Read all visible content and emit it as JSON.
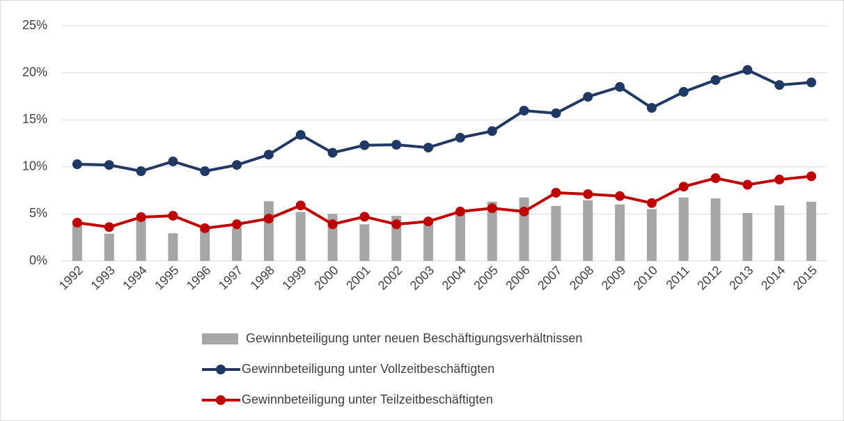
{
  "chart_data": {
    "type": "combo",
    "categories": [
      "1992",
      "1993",
      "1994",
      "1995",
      "1996",
      "1997",
      "1998",
      "1999",
      "2000",
      "2001",
      "2002",
      "2003",
      "2004",
      "2005",
      "2006",
      "2007",
      "2008",
      "2009",
      "2010",
      "2011",
      "2012",
      "2013",
      "2014",
      "2015"
    ],
    "series": [
      {
        "name": "Gewinnbeteiligung unter neuen Beschäftigungsverhältnissen",
        "type": "bar",
        "color": "#a6a6a6",
        "values": [
          4.1,
          2.9,
          4.7,
          2.95,
          3.5,
          3.5,
          6.35,
          5.2,
          5.0,
          3.9,
          4.8,
          4.4,
          5.2,
          6.3,
          6.75,
          5.85,
          6.45,
          6.0,
          5.5,
          6.75,
          6.65,
          5.1,
          5.9,
          6.3
        ]
      },
      {
        "name": "Gewinnbeteiligung unter Vollzeitbeschäftigten",
        "type": "line",
        "color": "#203864",
        "values": [
          10.28,
          10.2,
          9.54,
          10.58,
          9.54,
          10.2,
          11.3,
          13.4,
          11.5,
          12.3,
          12.35,
          12.05,
          13.1,
          13.8,
          15.98,
          15.7,
          17.45,
          18.5,
          16.27,
          17.97,
          19.23,
          20.3,
          18.7,
          18.98
        ]
      },
      {
        "name": "Gewinnbeteiligung unter Teilzeitbeschäftigten",
        "type": "line",
        "color": "#c00000",
        "values": [
          4.07,
          3.6,
          4.66,
          4.8,
          3.48,
          3.9,
          4.5,
          5.9,
          3.9,
          4.7,
          3.9,
          4.2,
          5.25,
          5.6,
          5.25,
          7.25,
          7.1,
          6.9,
          6.15,
          7.9,
          8.8,
          8.1,
          8.65,
          9.0
        ]
      }
    ],
    "ylim": [
      0,
      25
    ],
    "yticks": [
      {
        "value": 0,
        "label": "0%"
      },
      {
        "value": 5,
        "label": "5%"
      },
      {
        "value": 10,
        "label": "10%"
      },
      {
        "value": 15,
        "label": "15%"
      },
      {
        "value": 20,
        "label": "20%"
      },
      {
        "value": 25,
        "label": "25%"
      }
    ],
    "grid": true,
    "legend": "bottom"
  }
}
